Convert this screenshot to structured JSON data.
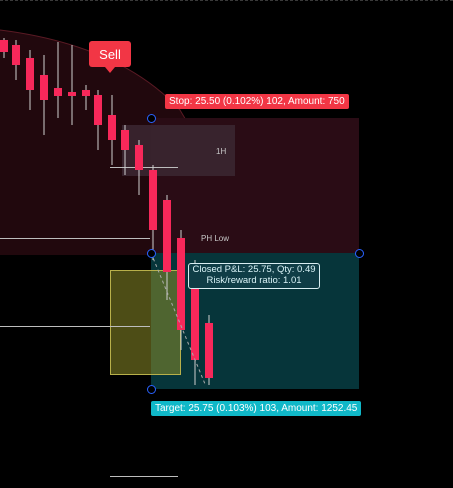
{
  "trade_tool": {
    "sell_label": "Sell",
    "stop_label": "Stop: 25.50 (0.102%) 102, Amount: 750",
    "target_label": "Target: 25.75 (0.103%) 103, Amount: 1252.45",
    "pnl_line1": "Closed P&L: 25.75, Qty: 0.49",
    "pnl_line2": "Risk/reward ratio: 1.01"
  },
  "annotations": {
    "box_label": "1H",
    "level_label": "PH Low"
  },
  "colors": {
    "bear": "#f7285a",
    "stop_zone": "#3a0f1c",
    "target_zone": "#06353a",
    "stop_tag": "#f23645",
    "target_tag": "#10b8c8",
    "handle": "#2962ff"
  }
}
